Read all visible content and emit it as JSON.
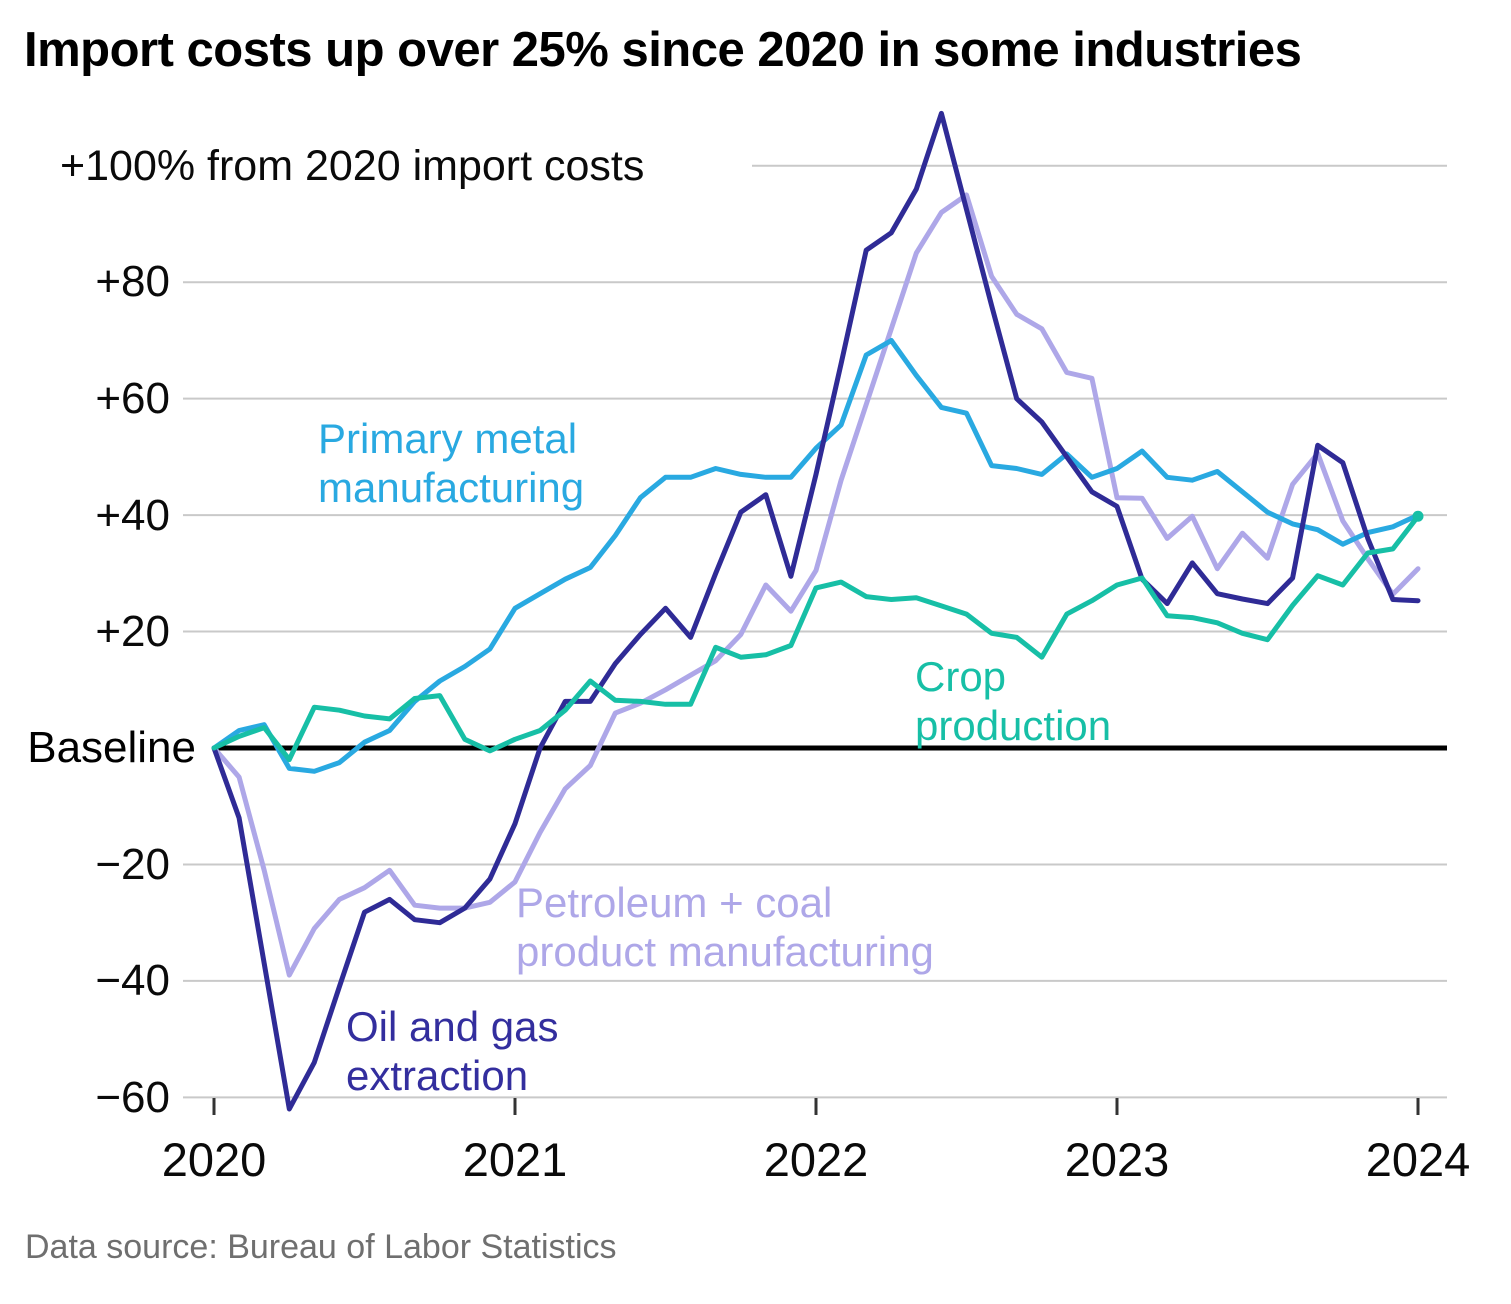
{
  "title": "Import costs up over 25% since 2020 in some industries",
  "source_note": "Data source: Bureau of Labor Statistics",
  "colors": {
    "primary_metal": "#29A9E1",
    "crop_production": "#17BFA6",
    "petroleum_coal": "#AEA7E8",
    "oil_gas": "#2F2B96",
    "gridline": "#C9C9C9",
    "baseline": "#000000",
    "axis_tick": "#333333",
    "source_text": "#6F6F6F"
  },
  "chart_data": {
    "type": "line",
    "title": "Import costs up over 25% since 2020 in some industries",
    "x_unit": "monthly, Jan 2020 - Jan 2024",
    "x_tick_labels": [
      "2020",
      "2021",
      "2022",
      "2023",
      "2024"
    ],
    "x_tick_month_indices": [
      0,
      12,
      24,
      36,
      48
    ],
    "grid": true,
    "y_axis": {
      "top_label": "+100% from 2020 import costs",
      "baseline_label": "Baseline",
      "tick_labels": [
        "+80",
        "+60",
        "+40",
        "+20",
        "−20",
        "−40",
        "−60"
      ],
      "tick_values": [
        80,
        60,
        40,
        20,
        -20,
        -40,
        -60
      ],
      "grid_values": [
        100,
        80,
        60,
        40,
        20,
        -20,
        -40,
        -60
      ],
      "baseline_value": 0,
      "range": [
        -65,
        112
      ]
    },
    "series": [
      {
        "id": "petroleum_coal",
        "name": "Petroleum + coal product manufacturing",
        "label_lines": [
          "Petroleum + coal",
          "product manufacturing"
        ],
        "color": "#AEA7E8",
        "values": [
          0,
          -5,
          -21,
          -39,
          -31,
          -26,
          -24,
          -21,
          -27,
          -27.5,
          -27.5,
          -26.5,
          -23,
          -14.5,
          -7,
          -3,
          6,
          7.7,
          10,
          12.5,
          15,
          19.5,
          28,
          23.5,
          30.5,
          46,
          59,
          72,
          85,
          92,
          95,
          81,
          74.5,
          72,
          64.5,
          63.5,
          43,
          42.9,
          36,
          39.8,
          30.8,
          36.9,
          32.6,
          45.3,
          50.6,
          39,
          32.5,
          26.4,
          30.8
        ]
      },
      {
        "id": "primary_metal",
        "name": "Primary metal manufacturing",
        "label_lines": [
          "Primary metal",
          "manufacturing"
        ],
        "color": "#29A9E1",
        "values": [
          0,
          3,
          4,
          -3.5,
          -4,
          -2.5,
          1,
          3,
          8,
          11.5,
          14,
          17,
          24,
          26.5,
          29,
          31,
          36.5,
          43,
          46.5,
          46.5,
          48,
          47,
          46.5,
          46.5,
          51.5,
          55.5,
          67.5,
          70,
          64,
          58.5,
          57.5,
          48.5,
          48,
          47,
          50.5,
          46.5,
          48,
          51,
          46.5,
          46,
          47.5,
          44,
          40.5,
          38.5,
          37.5,
          35,
          37,
          38,
          40
        ]
      },
      {
        "id": "oil_gas",
        "name": "Oil and gas extraction",
        "label_lines": [
          "Oil and gas",
          "extraction"
        ],
        "color": "#2F2B96",
        "values": [
          0,
          -12,
          -37,
          -62,
          -54,
          -41,
          -28.2,
          -26,
          -29.5,
          -30,
          -27.5,
          -22.5,
          -13,
          0,
          8,
          8,
          14.5,
          19.5,
          24,
          19,
          30,
          40.5,
          43.5,
          29.5,
          47,
          66,
          85.5,
          88.5,
          96,
          109,
          92.5,
          76,
          60,
          56,
          50,
          44,
          41.5,
          29,
          24.8,
          31.8,
          26.5,
          25.6,
          24.8,
          29.2,
          52,
          49,
          36,
          25.5,
          25.3
        ]
      },
      {
        "id": "crop_production",
        "name": "Crop production",
        "label_lines": [
          "Crop",
          "production"
        ],
        "color": "#17BFA6",
        "values": [
          0,
          2,
          3.5,
          -2,
          7,
          6.5,
          5.5,
          5,
          8.5,
          9,
          1.5,
          -0.5,
          1.5,
          3,
          6.5,
          11.5,
          8.2,
          8,
          7.5,
          7.5,
          17.3,
          15.6,
          16,
          17.6,
          27.5,
          28.5,
          26,
          25.5,
          25.8,
          24.4,
          23,
          19.7,
          19,
          15.6,
          23,
          25.3,
          28,
          29.2,
          22.7,
          22.4,
          21.5,
          19.7,
          18.6,
          24.5,
          29.6,
          28,
          33.5,
          34.2,
          39.8
        ],
        "end_dot": true
      }
    ]
  }
}
